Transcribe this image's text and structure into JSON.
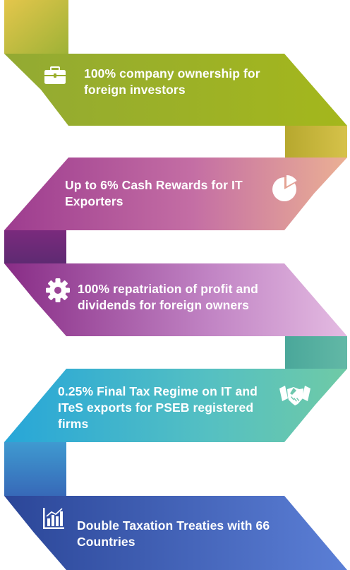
{
  "steps": [
    {
      "lines": [
        "100% company ownership for",
        "foreign investors"
      ],
      "icon": "briefcase-icon",
      "color_start": "#8ca437",
      "color_end": "#a5b71e"
    },
    {
      "lines": [
        "Up to 6% Cash Rewards for IT",
        "Exporters"
      ],
      "icon": "pie-chart-icon",
      "color_start": "#9b3b8e",
      "color_end": "#e9a79a"
    },
    {
      "lines": [
        "100% repatriation of profit and",
        "dividends for foreign owners"
      ],
      "icon": "gear-icon",
      "color_start": "#8a2e86",
      "color_end": "#d9a8d6"
    },
    {
      "lines": [
        "0.25% Final Tax Regime on IT and",
        "ITeS exports for PSEB registered",
        "firms"
      ],
      "icon": "handshake-icon",
      "color_start": "#2aa7d6",
      "color_end": "#66c6a8"
    },
    {
      "lines": [
        "Double Taxation Treaties with 66",
        "Countries"
      ],
      "icon": "bar-chart-icon",
      "color_start": "#2d4a9c",
      "color_end": "#5a7fd4"
    }
  ]
}
